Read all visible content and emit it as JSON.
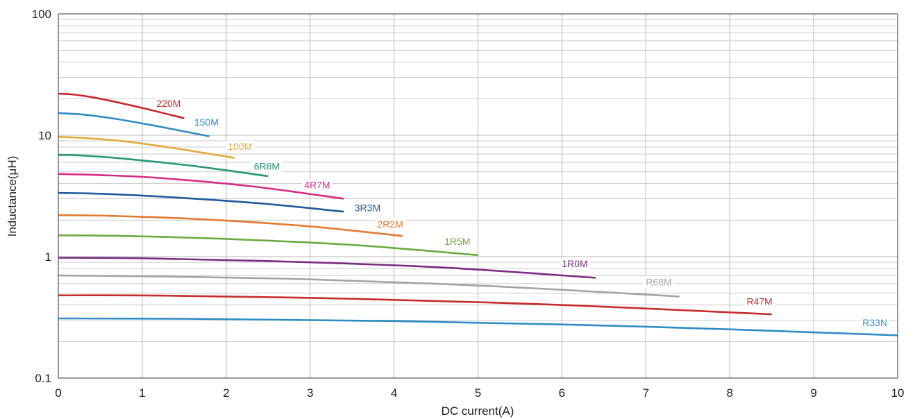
{
  "chart_data": {
    "type": "line",
    "xlabel": "DC current(A)",
    "ylabel": "Inductance(μH)",
    "xlim": [
      0,
      10
    ],
    "ylim": [
      0.1,
      100
    ],
    "y_scale": "log",
    "grid": true,
    "x_ticks": [
      "0",
      "1",
      "2",
      "3",
      "4",
      "5",
      "6",
      "7",
      "8",
      "9",
      "10"
    ],
    "y_ticks": [
      "0.1",
      "1",
      "10",
      "100"
    ],
    "series": [
      {
        "name": "220M",
        "color": "#c8282d",
        "x": [
          0,
          0.2,
          0.5,
          1.0,
          1.5
        ],
        "y": [
          22,
          21.6,
          20.0,
          16.8,
          13.8
        ]
      },
      {
        "name": "150M",
        "color": "#2e8cc4",
        "x": [
          0,
          0.3,
          0.7,
          1.2,
          1.8
        ],
        "y": [
          15.2,
          14.8,
          13.6,
          11.8,
          9.8
        ]
      },
      {
        "name": "100M",
        "color": "#e3aa3c",
        "x": [
          0,
          0.3,
          0.8,
          1.4,
          2.1
        ],
        "y": [
          9.7,
          9.5,
          8.9,
          7.8,
          6.5
        ]
      },
      {
        "name": "6R8M",
        "color": "#2a9677",
        "x": [
          0,
          0.3,
          0.8,
          1.6,
          2.5
        ],
        "y": [
          6.9,
          6.8,
          6.4,
          5.6,
          4.6
        ]
      },
      {
        "name": "4R7M",
        "color": "#d62b84",
        "x": [
          0,
          0.5,
          1.2,
          2.3,
          3.4
        ],
        "y": [
          4.8,
          4.7,
          4.45,
          3.8,
          3.0
        ]
      },
      {
        "name": "3R3M",
        "color": "#1f5a9b",
        "x": [
          0,
          0.5,
          1.3,
          2.4,
          3.4
        ],
        "y": [
          3.35,
          3.3,
          3.1,
          2.75,
          2.35
        ]
      },
      {
        "name": "2R2M",
        "color": "#e27a30",
        "x": [
          0,
          0.6,
          1.6,
          2.9,
          4.1
        ],
        "y": [
          2.2,
          2.17,
          2.05,
          1.8,
          1.48
        ]
      },
      {
        "name": "1R5M",
        "color": "#6aaa3e",
        "x": [
          0,
          0.8,
          2.0,
          3.5,
          5.0
        ],
        "y": [
          1.5,
          1.48,
          1.4,
          1.25,
          1.03
        ]
      },
      {
        "name": "1R0M",
        "color": "#7b2d84",
        "x": [
          0,
          1.0,
          2.5,
          4.5,
          6.4
        ],
        "y": [
          0.98,
          0.97,
          0.92,
          0.82,
          0.67
        ]
      },
      {
        "name": "R68M",
        "color": "#a3a3a3",
        "x": [
          0,
          1.0,
          3.0,
          5.2,
          7.4
        ],
        "y": [
          0.7,
          0.69,
          0.65,
          0.57,
          0.47
        ]
      },
      {
        "name": "R47M",
        "color": "#c62c2c",
        "x": [
          0,
          1.2,
          3.5,
          6.0,
          8.5
        ],
        "y": [
          0.48,
          0.478,
          0.45,
          0.4,
          0.335
        ]
      },
      {
        "name": "R33N",
        "color": "#2e8cc4",
        "x": [
          0,
          1.5,
          4.0,
          7.0,
          10.0
        ],
        "y": [
          0.31,
          0.308,
          0.295,
          0.265,
          0.225
        ]
      }
    ],
    "labels": [
      {
        "text": "220M",
        "x": 1.17,
        "y": 17.2
      },
      {
        "text": "150M",
        "x": 1.62,
        "y": 12.0
      },
      {
        "text": "100M",
        "x": 2.02,
        "y": 7.6
      },
      {
        "text": "6R8M",
        "x": 2.33,
        "y": 5.2
      },
      {
        "text": "4R7M",
        "x": 2.93,
        "y": 3.65
      },
      {
        "text": "3R3M",
        "x": 3.53,
        "y": 2.37
      },
      {
        "text": "2R2M",
        "x": 3.8,
        "y": 1.74
      },
      {
        "text": "1R5M",
        "x": 4.6,
        "y": 1.25
      },
      {
        "text": "1R0M",
        "x": 6.0,
        "y": 0.82
      },
      {
        "text": "R68M",
        "x": 7.0,
        "y": 0.58
      },
      {
        "text": "R47M",
        "x": 8.2,
        "y": 0.4
      },
      {
        "text": "R33N",
        "x": 9.58,
        "y": 0.268
      }
    ]
  }
}
